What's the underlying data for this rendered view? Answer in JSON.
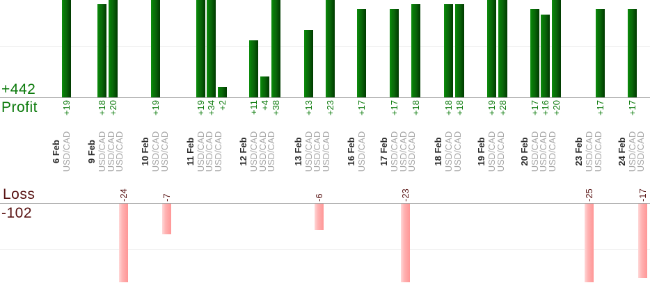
{
  "chart_data": {
    "type": "bar",
    "orientation": "vertical",
    "description": "Daily trade results split into a profit chart (top, green) and a loss chart (bottom, pink)",
    "instrument": "USD/CAD",
    "profit_series": {
      "label": "Profit",
      "total_label": "+442",
      "text_color": "#0b7a0b",
      "bar_color_left": "#0d8e0d",
      "bar_color_right": "#003a00",
      "gridline_value": 10
    },
    "loss_series": {
      "label": "Loss",
      "total_label": "-102",
      "text_color": "#571111",
      "bar_color_left": "#ffd8d8",
      "bar_color_right": "#ff9797",
      "gridline_value": -10
    },
    "axis_color": "#a3a3a3",
    "gridline_color": "#ececec",
    "groups": [
      {
        "date": "6 Feb",
        "trades": [
          {
            "instrument": "USD/CAD",
            "value": 19,
            "label": "+19"
          }
        ]
      },
      {
        "date": "9 Feb",
        "trades": [
          {
            "instrument": "USD/CAD",
            "value": 18,
            "label": "+18"
          },
          {
            "instrument": "USD/CAD",
            "value": 20,
            "label": "+20"
          },
          {
            "instrument": "USD/CAD",
            "value": -24,
            "label": "-24"
          }
        ]
      },
      {
        "date": "10 Feb",
        "trades": [
          {
            "instrument": "USD/CAD",
            "value": 19,
            "label": "+19"
          },
          {
            "instrument": "USD/CAD",
            "value": -7,
            "label": "-7"
          }
        ]
      },
      {
        "date": "11 Feb",
        "trades": [
          {
            "instrument": "USD/CAD",
            "value": 19,
            "label": "+19"
          },
          {
            "instrument": "USD/CAD",
            "value": 34,
            "label": "+34"
          },
          {
            "instrument": "USD/CAD",
            "value": 2,
            "label": "+2"
          }
        ]
      },
      {
        "date": "12 Feb",
        "trades": [
          {
            "instrument": "USD/CAD",
            "value": 11,
            "label": "+11"
          },
          {
            "instrument": "USD/CAD",
            "value": 4,
            "label": "+4"
          },
          {
            "instrument": "USD/CAD",
            "value": 38,
            "label": "+38"
          }
        ]
      },
      {
        "date": "13 Feb",
        "trades": [
          {
            "instrument": "USD/CAD",
            "value": 13,
            "label": "+13"
          },
          {
            "instrument": "USD/CAD",
            "value": -6,
            "label": "-6"
          },
          {
            "instrument": "USD/CAD",
            "value": 23,
            "label": "+23"
          }
        ]
      },
      {
        "date": "16 Feb",
        "trades": [
          {
            "instrument": "USD/CAD",
            "value": 17,
            "label": "+17"
          }
        ]
      },
      {
        "date": "17 Feb",
        "trades": [
          {
            "instrument": "USD/CAD",
            "value": 17,
            "label": "+17"
          },
          {
            "instrument": "USD/CAD",
            "value": -23,
            "label": "-23"
          },
          {
            "instrument": "USD/CAD",
            "value": 18,
            "label": "+18"
          }
        ]
      },
      {
        "date": "18 Feb",
        "trades": [
          {
            "instrument": "USD/CAD",
            "value": 18,
            "label": "+18"
          },
          {
            "instrument": "USD/CAD",
            "value": 18,
            "label": "+18"
          }
        ]
      },
      {
        "date": "19 Feb",
        "trades": [
          {
            "instrument": "USD/CAD",
            "value": 19,
            "label": "+19"
          },
          {
            "instrument": "USD/CAD",
            "value": 28,
            "label": "+28"
          }
        ]
      },
      {
        "date": "20 Feb",
        "trades": [
          {
            "instrument": "USD/CAD",
            "value": 17,
            "label": "+17"
          },
          {
            "instrument": "USD/CAD",
            "value": 16,
            "label": "+16"
          },
          {
            "instrument": "USD/CAD",
            "value": 20,
            "label": "+20"
          }
        ]
      },
      {
        "date": "23 Feb",
        "trades": [
          {
            "instrument": "USD/CAD",
            "value": -25,
            "label": "-25"
          },
          {
            "instrument": "USD/CAD",
            "value": 17,
            "label": "+17"
          }
        ]
      },
      {
        "date": "24 Feb",
        "trades": [
          {
            "instrument": "USD/CAD",
            "value": 17,
            "label": "+17"
          },
          {
            "instrument": "USD/CAD",
            "value": -17,
            "label": "-17"
          }
        ]
      }
    ]
  }
}
